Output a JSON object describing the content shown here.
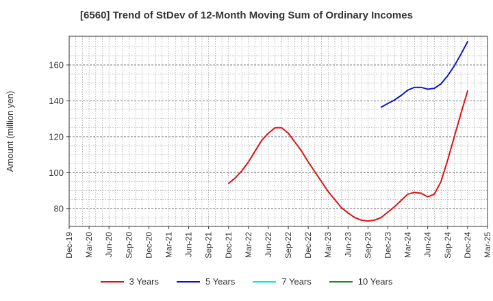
{
  "chart_data": {
    "type": "line",
    "title": "[6560]  Trend of StDev of 12-Month Moving Sum of Ordinary Incomes",
    "xlabel": "",
    "ylabel": "Amount (million yen)",
    "x_ticks": [
      "Dec-19",
      "Mar-20",
      "Jun-20",
      "Sep-20",
      "Dec-20",
      "Mar-21",
      "Jun-21",
      "Sep-21",
      "Dec-21",
      "Mar-22",
      "Jun-22",
      "Sep-22",
      "Dec-22",
      "Mar-23",
      "Jun-23",
      "Sep-23",
      "Dec-23",
      "Mar-24",
      "Jun-24",
      "Sep-24",
      "Dec-24",
      "Mar-25"
    ],
    "y_ticks": [
      80,
      100,
      120,
      140,
      160
    ],
    "ylim": [
      70,
      176
    ],
    "grid": true,
    "legend_position": "bottom",
    "series": [
      {
        "name": "3 Years",
        "color": "#dd1111",
        "points": [
          [
            "Dec-21",
            94
          ],
          [
            "Jan-22",
            97
          ],
          [
            "Feb-22",
            101
          ],
          [
            "Mar-22",
            106
          ],
          [
            "Apr-22",
            112
          ],
          [
            "May-22",
            118
          ],
          [
            "Jun-22",
            122
          ],
          [
            "Jul-22",
            125
          ],
          [
            "Aug-22",
            125
          ],
          [
            "Sep-22",
            122
          ],
          [
            "Oct-22",
            117
          ],
          [
            "Nov-22",
            112
          ],
          [
            "Dec-22",
            106
          ],
          [
            "Jan-23",
            100.5
          ],
          [
            "Feb-23",
            95
          ],
          [
            "Mar-23",
            89.5
          ],
          [
            "Apr-23",
            85
          ],
          [
            "May-23",
            80.5
          ],
          [
            "Jun-23",
            77.5
          ],
          [
            "Jul-23",
            75
          ],
          [
            "Aug-23",
            73.5
          ],
          [
            "Sep-23",
            73
          ],
          [
            "Oct-23",
            73.5
          ],
          [
            "Nov-23",
            75
          ],
          [
            "Dec-23",
            78
          ],
          [
            "Jan-24",
            81
          ],
          [
            "Feb-24",
            84.5
          ],
          [
            "Mar-24",
            88
          ],
          [
            "Apr-24",
            89
          ],
          [
            "May-24",
            88.5
          ],
          [
            "Jun-24",
            86.5
          ],
          [
            "Jul-24",
            88
          ],
          [
            "Aug-24",
            95
          ],
          [
            "Sep-24",
            107
          ],
          [
            "Oct-24",
            120
          ],
          [
            "Nov-24",
            133
          ],
          [
            "Dec-24",
            145.5
          ]
        ]
      },
      {
        "name": "5 Years",
        "color": "#1111cc",
        "points": [
          [
            "Nov-23",
            136.5
          ],
          [
            "Dec-23",
            138.5
          ],
          [
            "Jan-24",
            140.5
          ],
          [
            "Feb-24",
            143
          ],
          [
            "Mar-24",
            146
          ],
          [
            "Apr-24",
            147.5
          ],
          [
            "May-24",
            147.5
          ],
          [
            "Jun-24",
            146.5
          ],
          [
            "Jul-24",
            147
          ],
          [
            "Aug-24",
            149.5
          ],
          [
            "Sep-24",
            154
          ],
          [
            "Oct-24",
            159.5
          ],
          [
            "Nov-24",
            166
          ],
          [
            "Dec-24",
            173
          ]
        ]
      },
      {
        "name": "7 Years",
        "color": "#00e5ee",
        "points": []
      },
      {
        "name": "10 Years",
        "color": "#228822",
        "points": []
      }
    ]
  }
}
